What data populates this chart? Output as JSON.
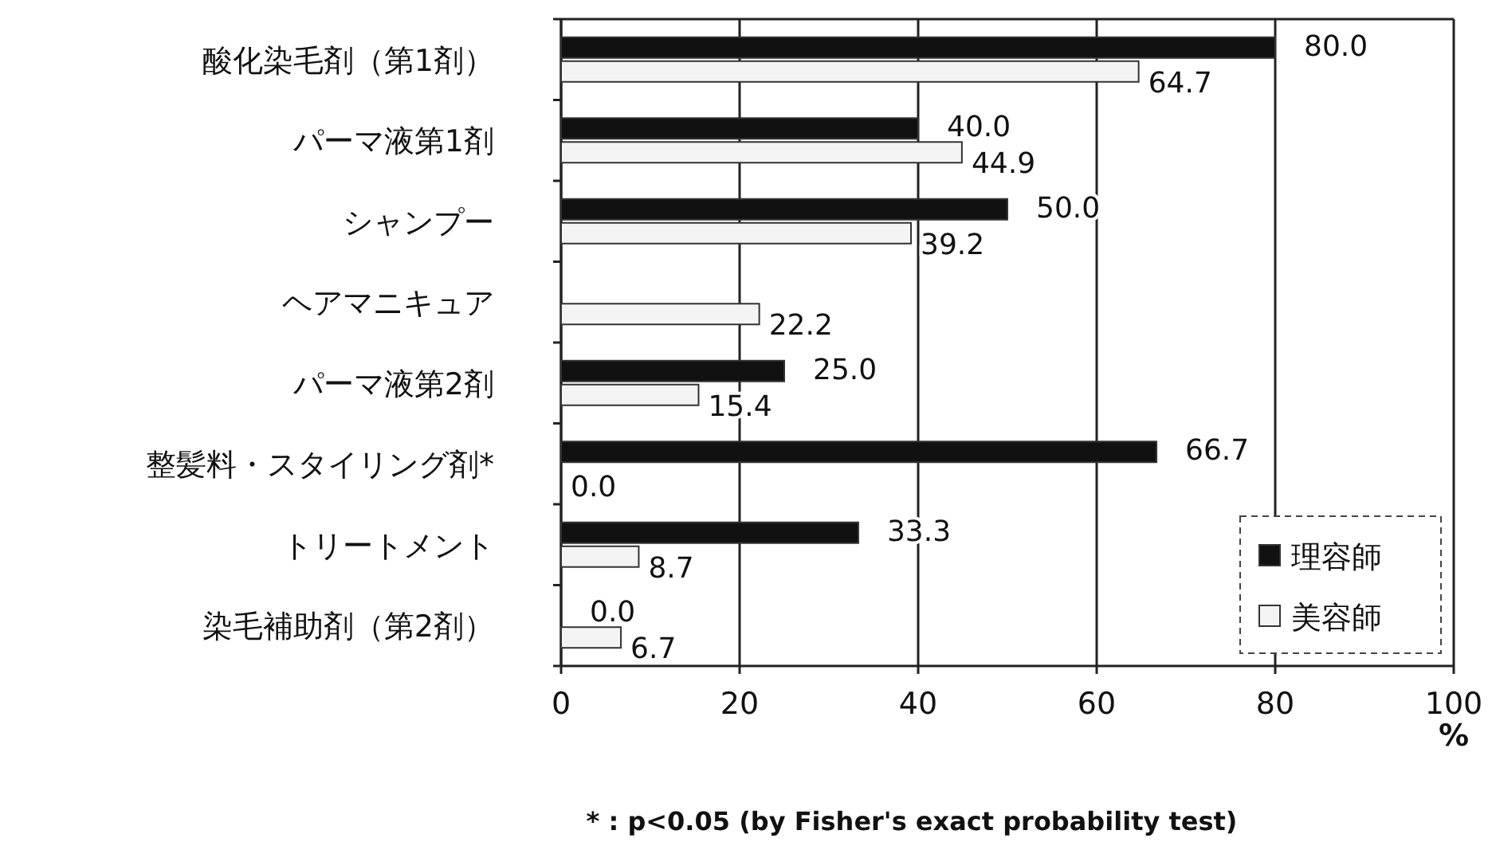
{
  "chart_data": {
    "type": "bar",
    "orientation": "horizontal",
    "categories": [
      "酸化染毛剤（第1剤）",
      "パーマ液第1剤",
      "シャンプー",
      "ヘアマニキュア",
      "パーマ液第2剤",
      "整髪料・スタイリング剤*",
      "トリートメント",
      "染毛補助剤（第2剤）"
    ],
    "series": [
      {
        "name": "理容師",
        "color": "#111111",
        "values": [
          80.0,
          40.0,
          50.0,
          null,
          25.0,
          66.7,
          33.3,
          0.0
        ],
        "value_labels": [
          "80.0",
          "40.0",
          "50.0",
          null,
          "25.0",
          "66.7",
          "33.3",
          "0.0"
        ]
      },
      {
        "name": "美容師",
        "color": "#f4f4f4",
        "values": [
          64.7,
          44.9,
          39.2,
          22.2,
          15.4,
          0.0,
          8.7,
          6.7
        ],
        "value_labels": [
          "64.7",
          "44.9",
          "39.2",
          "22.2",
          "15.4",
          "0.0",
          "8.7",
          "6.7"
        ]
      }
    ],
    "xlim": [
      0,
      100
    ],
    "xticks": [
      0,
      20,
      40,
      60,
      80,
      100
    ],
    "xlabel": "%",
    "grid": "x",
    "legend": "bottom right",
    "annotations": [
      "* : p<0.05 (by Fisher's exact probability test)"
    ]
  }
}
